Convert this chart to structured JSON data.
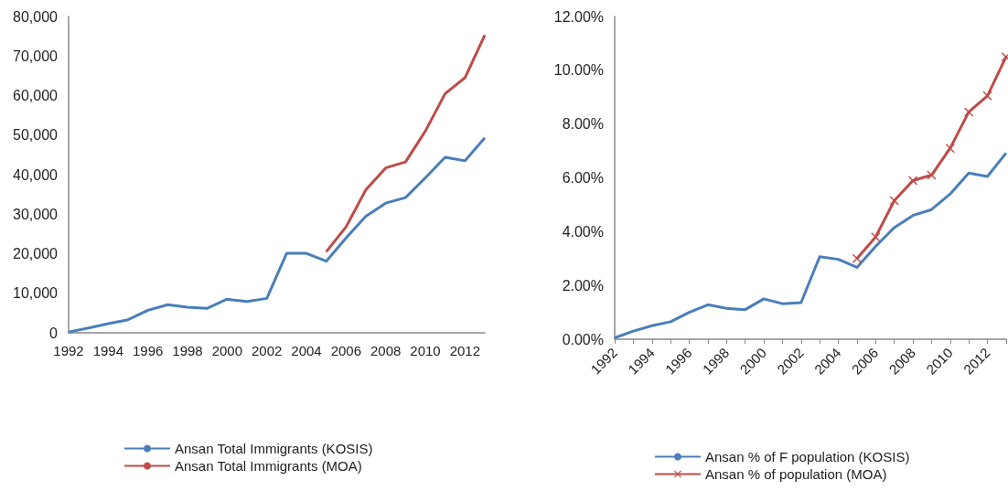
{
  "chart_data": [
    {
      "type": "line",
      "categories": [
        "1992",
        null,
        "1994",
        null,
        "1996",
        null,
        "1998",
        null,
        "2000",
        null,
        "2002",
        null,
        "2004",
        null,
        "2006",
        null,
        "2008",
        null,
        "2010",
        null,
        "2012",
        null
      ],
      "series": [
        {
          "name": "Ansan Total Immigrants (KOSIS)",
          "color": "#4a7ebb",
          "values": [
            200,
            1200,
            2300,
            3300,
            5700,
            7100,
            6500,
            6200,
            8500,
            7900,
            8700,
            20100,
            20100,
            18100,
            24000,
            29500,
            32800,
            34200,
            39200,
            44400,
            43500,
            49300
          ]
        },
        {
          "name": "Ansan Total Immigrants (MOA)",
          "color": "#be4b48",
          "values": [
            null,
            null,
            null,
            null,
            null,
            null,
            null,
            null,
            null,
            null,
            null,
            null,
            null,
            20500,
            26800,
            36200,
            41700,
            43200,
            51000,
            60500,
            64500,
            75300
          ]
        }
      ],
      "ylim": [
        0,
        80000
      ],
      "yticks": [
        0,
        {
          "value": 10000,
          "label": "10,000"
        },
        {
          "value": 20000,
          "label": "20,000"
        },
        {
          "value": 30000,
          "label": "30,000"
        },
        {
          "value": 40000,
          "label": "40,000"
        },
        {
          "value": 50000,
          "label": "50,000"
        },
        {
          "value": 60000,
          "label": "60,000"
        },
        {
          "value": 70000,
          "label": "70,000"
        },
        {
          "value": 80000,
          "label": "80,000"
        }
      ],
      "grid": false,
      "legend": "bottom",
      "marker": "none"
    },
    {
      "type": "line",
      "categories": [
        "1992",
        null,
        "1994",
        null,
        "1996",
        null,
        "1998",
        null,
        "2000",
        null,
        "2002",
        null,
        "2004",
        null,
        "2006",
        null,
        "2008",
        null,
        "2010",
        null,
        "2012",
        null
      ],
      "series": [
        {
          "name": "Ansan % of F population (KOSIS)",
          "color": "#4a7ebb",
          "marker": "none",
          "values": [
            0.05,
            0.3,
            0.5,
            0.65,
            1.0,
            1.28,
            1.15,
            1.1,
            1.5,
            1.32,
            1.36,
            3.07,
            2.97,
            2.67,
            3.45,
            4.15,
            4.6,
            4.82,
            5.4,
            6.18,
            6.05,
            6.92
          ]
        },
        {
          "name": "Ansan % of population (MOA)",
          "color": "#be4b48",
          "marker": "cross",
          "values": [
            null,
            null,
            null,
            null,
            null,
            null,
            null,
            null,
            null,
            null,
            null,
            null,
            null,
            3.0,
            3.8,
            5.15,
            5.9,
            6.1,
            7.1,
            8.45,
            9.05,
            10.5
          ]
        }
      ],
      "ylim": [
        0,
        12
      ],
      "yticks": [
        {
          "value": 0,
          "label": "0.00%"
        },
        {
          "value": 2,
          "label": "2.00%"
        },
        {
          "value": 4,
          "label": "4.00%"
        },
        {
          "value": 6,
          "label": "6.00%"
        },
        {
          "value": 8,
          "label": "8.00%"
        },
        {
          "value": 10,
          "label": "10.00%"
        },
        {
          "value": 12,
          "label": "12.00%"
        }
      ],
      "grid": false,
      "legend": "bottom"
    }
  ]
}
